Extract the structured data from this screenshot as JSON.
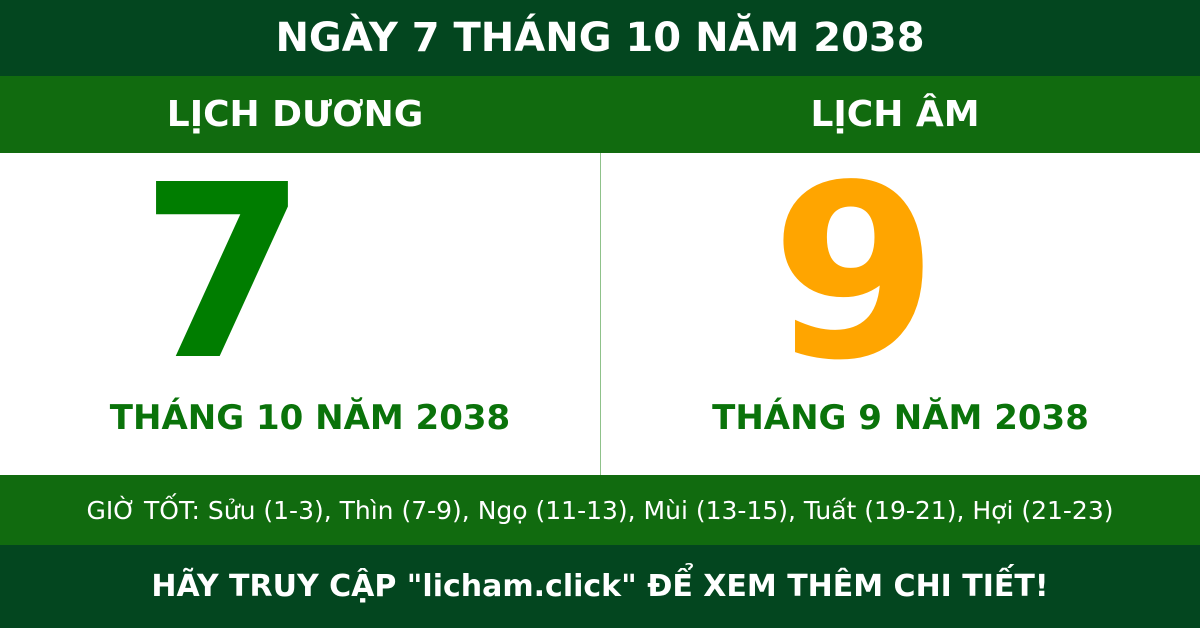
{
  "title": "NGÀY 7 THÁNG 10 NĂM 2038",
  "solar": {
    "heading": "LỊCH DƯƠNG",
    "day": "7",
    "month_year": "THÁNG 10 NĂM 2038"
  },
  "lunar": {
    "heading": "LỊCH ÂM",
    "day": "9",
    "month_year": "THÁNG 9 NĂM 2038"
  },
  "good_hours": "GIỜ TỐT: Sửu (1-3), Thìn (7-9), Ngọ (11-13), Mùi (13-15), Tuất (19-21), Hợi (21-23)",
  "footer": "HÃY TRUY CẬP \"licham.click\" ĐỂ XEM THÊM CHI TIẾT!",
  "colors": {
    "dark_green": "#03461f",
    "green": "#116b0f",
    "solar_day": "#007d00",
    "lunar_day": "#ffa500"
  }
}
